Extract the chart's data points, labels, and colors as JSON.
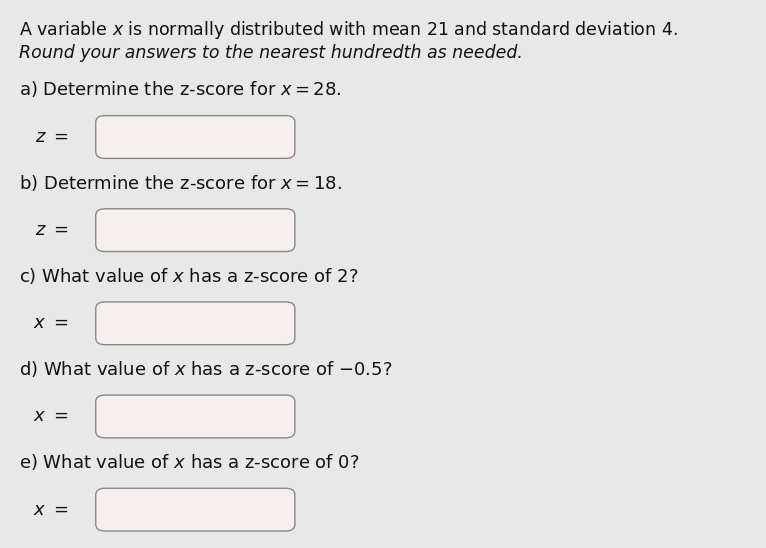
{
  "background_color": "#e8e8e8",
  "text_color": "#111111",
  "title_line1": "A variable $x$ is normally distributed with mean 21 and standard deviation 4.",
  "title_line2": "Round your answers to the nearest hundredth as needed.",
  "questions": [
    {
      "label": "a) Determine the z-score for $x = 28$.",
      "var": "$z$"
    },
    {
      "label": "b) Determine the z-score for $x = 18$.",
      "var": "$z$"
    },
    {
      "label": "c) What value of $x$ has a z-score of 2?",
      "var": "$x$"
    },
    {
      "label": "d) What value of $x$ has a z-score of $-0.5$?",
      "var": "$x$"
    },
    {
      "label": "e) What value of $x$ has a z-score of 0?",
      "var": "$x$"
    }
  ],
  "box_facecolor": "#f5f0ee",
  "box_edge_color": "#888888",
  "figsize": [
    7.66,
    5.48
  ],
  "dpi": 100
}
